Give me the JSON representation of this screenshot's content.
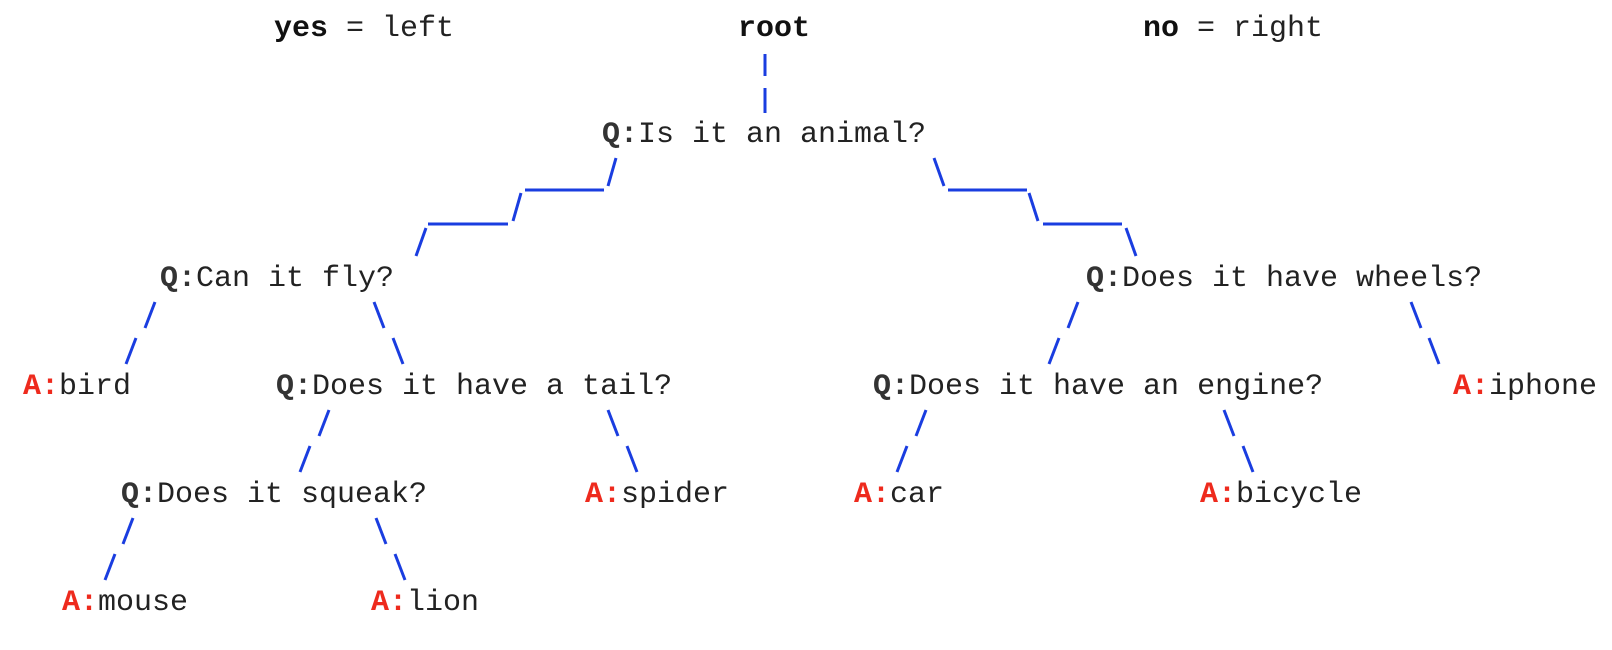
{
  "legend": {
    "yes": "yes",
    "yes_rest": " = left",
    "root": "root",
    "no": "no",
    "no_rest": " = right"
  },
  "prefix": {
    "question": "Q:",
    "answer": "A:"
  },
  "colors": {
    "edge": "#1a3de0",
    "answer_prefix": "#ee2a1d",
    "text": "#222222"
  },
  "nodes": {
    "q_animal": "Is it an animal?",
    "q_fly": "Can it fly?",
    "q_wheels": "Does it have wheels?",
    "a_bird": "bird",
    "q_tail": "Does it have a tail?",
    "q_engine": "Does it have an engine?",
    "a_iphone": "iphone",
    "q_squeak": "Does it squeak?",
    "a_spider": "spider",
    "a_car": "car",
    "a_bicycle": "bicycle",
    "a_mouse": "mouse",
    "a_lion": "lion"
  }
}
